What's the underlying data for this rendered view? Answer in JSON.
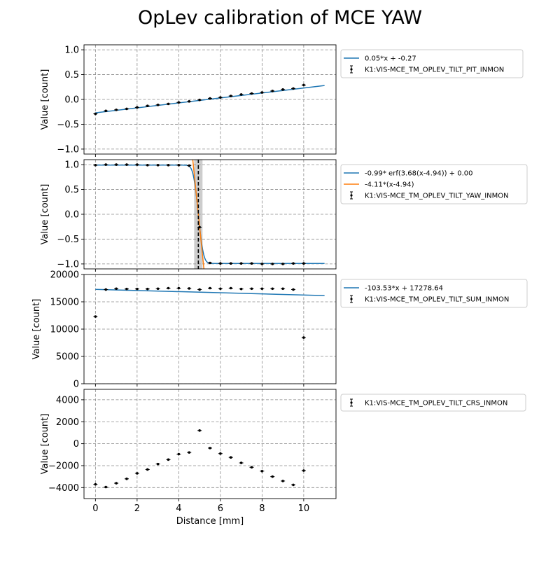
{
  "chart_data": {
    "title": "OpLev calibration of MCE YAW",
    "xlabel": "Distance [mm]",
    "xlim": [
      -0.55,
      11.55
    ],
    "x_ticks": [
      0,
      2,
      4,
      6,
      8,
      10
    ],
    "panels": [
      {
        "type": "scatter",
        "ylabel": "Value [count]",
        "ylim": [
          -1.1,
          1.1
        ],
        "y_ticks": [
          -1.0,
          -0.5,
          0.0,
          0.5,
          1.0
        ],
        "y_tick_labels": [
          "−1.0",
          "−0.5",
          "0.0",
          "0.5",
          "1.0"
        ],
        "grid": true,
        "legend_placement": "outside-right",
        "fits": [
          {
            "name": "0.05*x + -0.27",
            "color": "#1f77b4",
            "kind": "linear",
            "slope": 0.05,
            "intercept": -0.27,
            "x_range": [
              0,
              11
            ]
          }
        ],
        "series": [
          {
            "name": "K1:VIS-MCE_TM_OPLEV_TILT_PIT_INMON",
            "color": "#000000",
            "x": [
              0,
              0.5,
              1,
              1.5,
              2,
              2.5,
              3,
              3.5,
              4,
              4.5,
              5,
              5.5,
              6,
              6.5,
              7,
              7.5,
              8,
              8.5,
              9,
              9.5,
              10
            ],
            "y": [
              -0.29,
              -0.23,
              -0.21,
              -0.19,
              -0.16,
              -0.13,
              -0.11,
              -0.09,
              -0.06,
              -0.04,
              -0.01,
              0.02,
              0.04,
              0.07,
              0.1,
              0.12,
              0.14,
              0.17,
              0.2,
              0.22,
              0.29
            ]
          }
        ]
      },
      {
        "type": "scatter",
        "ylabel": "Value [count]",
        "ylim": [
          -1.1,
          1.1
        ],
        "y_ticks": [
          -1.0,
          -0.5,
          0.0,
          0.5,
          1.0
        ],
        "y_tick_labels": [
          "−1.0",
          "−0.5",
          "0.0",
          "0.5",
          "1.0"
        ],
        "grid": true,
        "legend_placement": "outside-right",
        "band": [
          4.74,
          5.14
        ],
        "vline": 4.94,
        "fits": [
          {
            "name": "-0.99* erf(3.68(x-4.94)) + 0.00",
            "color": "#1f77b4",
            "kind": "erf",
            "a": -0.99,
            "k": 3.68,
            "x0": 4.94,
            "c": 0.0,
            "x_range": [
              0,
              11
            ]
          },
          {
            "name": "-4.11*(x-4.94)",
            "color": "#ff7f0e",
            "kind": "linear",
            "slope": -4.11,
            "intercept": 20.3034,
            "x_range": [
              4.65,
              5.22
            ]
          }
        ],
        "series": [
          {
            "name": "K1:VIS-MCE_TM_OPLEV_TILT_YAW_INMON",
            "color": "#000000",
            "x": [
              0,
              0.5,
              1,
              1.5,
              2,
              2.5,
              3,
              3.5,
              4,
              4.5,
              5,
              5.5,
              6,
              6.5,
              7,
              7.5,
              8,
              8.5,
              9,
              9.5,
              10
            ],
            "y": [
              0.99,
              1.0,
              1.0,
              1.0,
              1.0,
              0.99,
              0.99,
              0.99,
              0.99,
              0.98,
              -0.26,
              -0.98,
              -0.99,
              -0.99,
              -0.99,
              -0.99,
              -1.0,
              -1.0,
              -1.0,
              -0.99,
              -0.99
            ]
          }
        ]
      },
      {
        "type": "scatter",
        "ylabel": "Value [count]",
        "ylim": [
          0,
          20000
        ],
        "y_ticks": [
          0,
          5000,
          10000,
          15000,
          20000
        ],
        "y_tick_labels": [
          "0",
          "5000",
          "10000",
          "15000",
          "20000"
        ],
        "grid": true,
        "legend_placement": "outside-right",
        "fits": [
          {
            "name": "-103.53*x + 17278.64",
            "color": "#1f77b4",
            "kind": "linear",
            "slope": -103.53,
            "intercept": 17278.64,
            "x_range": [
              0,
              11
            ]
          }
        ],
        "series": [
          {
            "name": "K1:VIS-MCE_TM_OPLEV_TILT_SUM_INMON",
            "color": "#000000",
            "x": [
              0,
              0.5,
              1,
              1.5,
              2,
              2.5,
              3,
              3.5,
              4,
              4.5,
              5,
              5.5,
              6,
              6.5,
              7,
              7.5,
              8,
              8.5,
              9,
              9.5,
              10
            ],
            "y": [
              12300,
              17250,
              17400,
              17350,
              17350,
              17350,
              17400,
              17500,
              17500,
              17450,
              17250,
              17500,
              17400,
              17500,
              17350,
              17400,
              17400,
              17400,
              17400,
              17250,
              8450
            ]
          }
        ]
      },
      {
        "type": "scatter",
        "ylabel": "Value [count]",
        "ylim": [
          -5000,
          4950
        ],
        "y_ticks": [
          -4000,
          -2000,
          0,
          2000,
          4000
        ],
        "y_tick_labels": [
          "−4000",
          "−2000",
          "0",
          "2000",
          "4000"
        ],
        "grid": true,
        "legend_placement": "outside-right",
        "fits": [],
        "series": [
          {
            "name": "K1:VIS-MCE_TM_OPLEV_TILT_CRS_INMON",
            "color": "#000000",
            "x": [
              0,
              0.5,
              1,
              1.5,
              2,
              2.5,
              3,
              3.5,
              4,
              4.5,
              5,
              5.5,
              6,
              6.5,
              7,
              7.5,
              8,
              8.5,
              9,
              9.5,
              10
            ],
            "y": [
              -3700,
              -3950,
              -3600,
              -3200,
              -2700,
              -2350,
              -1850,
              -1450,
              -950,
              -800,
              1200,
              -400,
              -900,
              -1250,
              -1750,
              -2150,
              -2500,
              -3000,
              -3400,
              -3750,
              -2450
            ]
          }
        ]
      }
    ]
  }
}
